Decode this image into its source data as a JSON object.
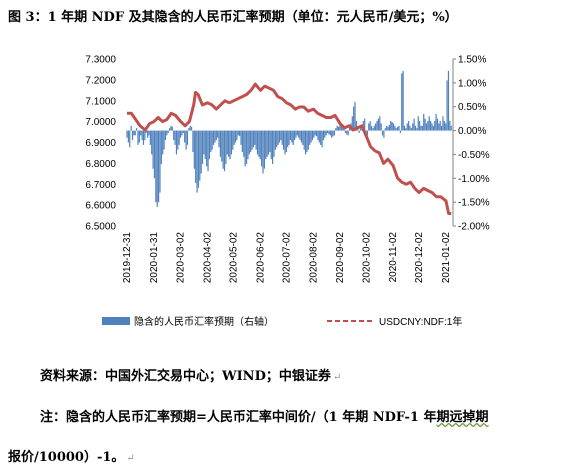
{
  "figure": {
    "title": "图 3：1 年期 NDF 及其隐含的人民币汇率预期（单位：元人民币/美元；%）",
    "source": "资料来源：中国外汇交易中心；WIND；中银证券",
    "note_line1_a": "注：隐含的人民币汇率预期=人民币汇率中间价/（1 年期 NDF-1 年",
    "note_line1_b": "期远掉期",
    "note_line2": "报价/10000）-1。",
    "return_mark": "↵"
  },
  "chart_data": {
    "type": "bar+line",
    "x_tick_labels": [
      "2019-12-31",
      "2020-01-31",
      "2020-03-02",
      "2020-04-02",
      "2020-05-02",
      "2020-06-02",
      "2020-07-02",
      "2020-08-02",
      "2020-09-02",
      "2020-10-02",
      "2020-11-02",
      "2020-12-02",
      "2021-01-02"
    ],
    "y_left": {
      "min": 6.5,
      "max": 7.3,
      "ticks": [
        "7.3000",
        "7.2000",
        "7.1000",
        "7.0000",
        "6.9000",
        "6.8000",
        "6.7000",
        "6.6000",
        "6.5000"
      ]
    },
    "y_right": {
      "min": -2.0,
      "max": 1.5,
      "ticks": [
        "1.50%",
        "1.00%",
        "0.50%",
        "0.00%",
        "-0.50%",
        "-1.00%",
        "-1.50%",
        "-2.00%"
      ]
    },
    "legend": {
      "placement": "bottom"
    },
    "colors": {
      "bars": "#4f81bd",
      "line": "#c0504d"
    },
    "series": [
      {
        "name": "隐含的人民币汇率预期（右轴）",
        "axis": "right",
        "kind": "bar",
        "date_range": [
          "2019-12-31",
          "2021-01-08"
        ],
        "values": [
          -0.15,
          -0.25,
          -0.35,
          0.1,
          -0.2,
          -0.1,
          -0.1,
          0.05,
          -0.3,
          -0.25,
          -0.1,
          -0.2,
          -0.3,
          -0.2,
          -0.05,
          -0.15,
          -0.1,
          -0.3,
          -0.5,
          -0.8,
          -1.0,
          -1.5,
          -1.6,
          -1.5,
          -1.3,
          -0.7,
          -0.5,
          -0.4,
          -0.2,
          -0.1,
          -0.05,
          0.05,
          0.1,
          0.08,
          -0.2,
          -0.3,
          -0.5,
          -0.4,
          -0.3,
          -0.15,
          -0.1,
          -0.05,
          -0.25,
          -0.4,
          -0.3,
          0.05,
          0.1,
          0.08,
          -0.45,
          -0.8,
          -1.1,
          -1.3,
          -1.2,
          -1.05,
          -0.9,
          -0.7,
          -0.5,
          -0.6,
          -0.75,
          -0.85,
          -0.6,
          -0.45,
          -0.4,
          -0.3,
          -0.25,
          -0.2,
          -0.15,
          -0.35,
          -0.55,
          -0.65,
          -0.8,
          -0.85,
          -0.7,
          -0.5,
          -0.55,
          -0.6,
          -0.5,
          -0.4,
          -0.3,
          -0.25,
          -0.2,
          -0.1,
          -0.12,
          -0.3,
          -0.45,
          -0.55,
          -0.75,
          -0.7,
          -0.6,
          -0.5,
          -0.45,
          -0.4,
          -0.35,
          -0.3,
          -0.4,
          -0.5,
          -0.55,
          -0.6,
          -0.75,
          -0.9,
          -0.8,
          -0.6,
          -0.55,
          -0.5,
          -0.45,
          -0.6,
          -0.7,
          -0.55,
          -0.4,
          -0.35,
          -0.3,
          -0.25,
          -0.2,
          -0.3,
          -0.4,
          -0.5,
          -0.45,
          -0.35,
          -0.3,
          -0.2,
          -0.25,
          -0.3,
          -0.2,
          -0.15,
          -0.1,
          -0.15,
          -0.2,
          -0.25,
          -0.3,
          -0.4,
          -0.5,
          -0.45,
          -0.4,
          -0.3,
          -0.25,
          -0.2,
          -0.15,
          -0.1,
          -0.12,
          -0.2,
          -0.25,
          -0.3,
          -0.35,
          -0.2,
          -0.15,
          -0.1,
          -0.05,
          -0.08,
          -0.1,
          -0.15,
          -0.12,
          -0.1,
          0.05,
          0.1,
          0.08,
          0.12,
          0.15,
          0.1,
          0.05,
          -0.05,
          -0.08,
          -0.1,
          0.1,
          0.15,
          0.3,
          0.5,
          0.6,
          0.2,
          0.1,
          -0.05,
          0.05,
          0.1,
          0.2,
          0.25,
          -0.05,
          -0.1,
          0.15,
          0.2,
          0.1,
          0.05,
          0.1,
          0.15,
          0.2,
          0.25,
          0.3,
          0.15,
          -0.1,
          -0.15,
          0.05,
          0.1,
          0.08,
          0.12,
          0.2,
          0.18,
          0.15,
          0.1,
          0.05,
          0.08,
          0.1,
          -0.05,
          1.2,
          1.25,
          0.1,
          0.05,
          0.15,
          0.2,
          0.1,
          0.05,
          0.15,
          0.25,
          0.1,
          0.05,
          0.3,
          0.2,
          0.1,
          0.1,
          0.35,
          0.25,
          0.15,
          0.2,
          0.3,
          0.2,
          0.15,
          0.1,
          0.2,
          0.35,
          0.25,
          0.15,
          0.2,
          0.1,
          0.3,
          0.2,
          0.15,
          1.05,
          1.25,
          0.2,
          0.1
        ]
      },
      {
        "name": "USDCNY:NDF:1年",
        "axis": "left",
        "kind": "line",
        "points": [
          [
            "2019-12-31",
            7.04
          ],
          [
            "2020-01-05",
            7.04
          ],
          [
            "2020-01-10",
            7.01
          ],
          [
            "2020-01-15",
            6.98
          ],
          [
            "2020-01-21",
            6.96
          ],
          [
            "2020-01-26",
            6.99
          ],
          [
            "2020-01-31",
            7.0
          ],
          [
            "2020-02-05",
            7.02
          ],
          [
            "2020-02-10",
            7.0
          ],
          [
            "2020-02-15",
            7.01
          ],
          [
            "2020-02-20",
            7.04
          ],
          [
            "2020-02-25",
            7.03
          ],
          [
            "2020-03-02",
            7.0
          ],
          [
            "2020-03-07",
            6.98
          ],
          [
            "2020-03-12",
            7.0
          ],
          [
            "2020-03-17",
            7.08
          ],
          [
            "2020-03-19",
            7.14
          ],
          [
            "2020-03-22",
            7.13
          ],
          [
            "2020-03-27",
            7.08
          ],
          [
            "2020-04-02",
            7.09
          ],
          [
            "2020-04-07",
            7.08
          ],
          [
            "2020-04-12",
            7.06
          ],
          [
            "2020-04-17",
            7.08
          ],
          [
            "2020-04-22",
            7.1
          ],
          [
            "2020-04-27",
            7.09
          ],
          [
            "2020-05-02",
            7.1
          ],
          [
            "2020-05-07",
            7.11
          ],
          [
            "2020-05-12",
            7.12
          ],
          [
            "2020-05-17",
            7.13
          ],
          [
            "2020-05-22",
            7.15
          ],
          [
            "2020-05-27",
            7.18
          ],
          [
            "2020-06-02",
            7.15
          ],
          [
            "2020-06-07",
            7.17
          ],
          [
            "2020-06-12",
            7.16
          ],
          [
            "2020-06-17",
            7.15
          ],
          [
            "2020-06-22",
            7.12
          ],
          [
            "2020-06-27",
            7.11
          ],
          [
            "2020-07-02",
            7.09
          ],
          [
            "2020-07-07",
            7.08
          ],
          [
            "2020-07-12",
            7.06
          ],
          [
            "2020-07-17",
            7.07
          ],
          [
            "2020-07-22",
            7.07
          ],
          [
            "2020-07-27",
            7.05
          ],
          [
            "2020-08-02",
            7.06
          ],
          [
            "2020-08-07",
            7.04
          ],
          [
            "2020-08-12",
            7.03
          ],
          [
            "2020-08-17",
            7.02
          ],
          [
            "2020-08-22",
            7.02
          ],
          [
            "2020-08-27",
            7.03
          ],
          [
            "2020-09-02",
            6.99
          ],
          [
            "2020-09-07",
            6.97
          ],
          [
            "2020-09-12",
            6.98
          ],
          [
            "2020-09-17",
            6.96
          ],
          [
            "2020-09-22",
            6.97
          ],
          [
            "2020-09-27",
            6.98
          ],
          [
            "2020-10-02",
            6.93
          ],
          [
            "2020-10-07",
            6.88
          ],
          [
            "2020-10-12",
            6.86
          ],
          [
            "2020-10-17",
            6.85
          ],
          [
            "2020-10-22",
            6.8
          ],
          [
            "2020-10-27",
            6.82
          ],
          [
            "2020-11-02",
            6.79
          ],
          [
            "2020-11-07",
            6.73
          ],
          [
            "2020-11-12",
            6.71
          ],
          [
            "2020-11-17",
            6.7
          ],
          [
            "2020-11-22",
            6.71
          ],
          [
            "2020-11-27",
            6.68
          ],
          [
            "2020-12-02",
            6.66
          ],
          [
            "2020-12-07",
            6.68
          ],
          [
            "2020-12-12",
            6.67
          ],
          [
            "2020-12-17",
            6.66
          ],
          [
            "2020-12-22",
            6.64
          ],
          [
            "2020-12-27",
            6.64
          ],
          [
            "2021-01-02",
            6.62
          ],
          [
            "2021-01-05",
            6.56
          ],
          [
            "2021-01-08",
            6.56
          ]
        ]
      }
    ]
  }
}
